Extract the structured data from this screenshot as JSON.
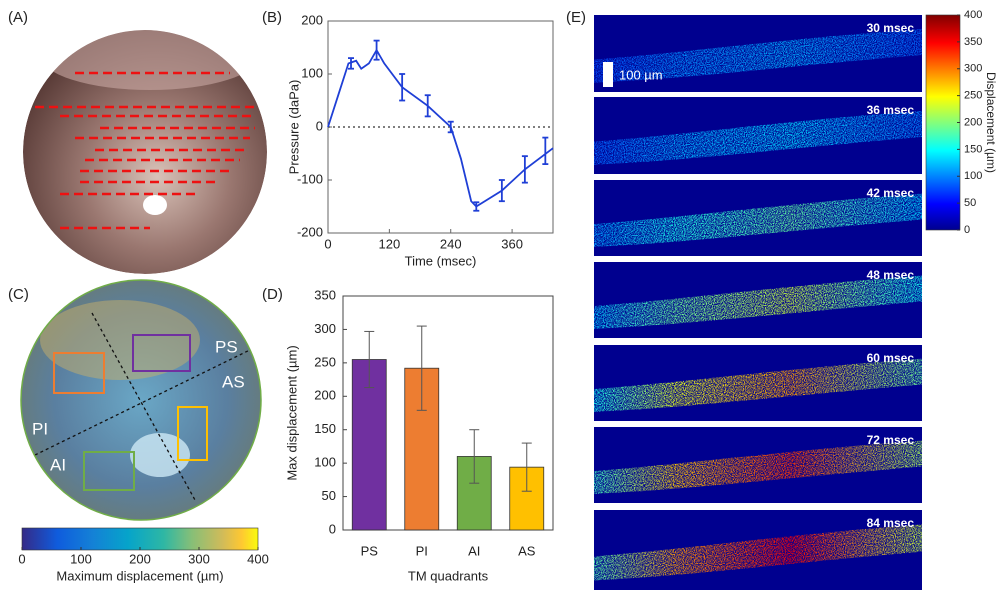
{
  "panel_labels": [
    "(A)",
    "(B)",
    "(C)",
    "(D)",
    "(E)"
  ],
  "quadrant_labels": [
    "PS",
    "AS",
    "PI",
    "AI"
  ],
  "frames": [
    "30 msec",
    "36 msec",
    "42 msec",
    "48 msec",
    "60 msec",
    "72 msec",
    "84 msec"
  ],
  "scale_bar": "100 µm",
  "chart_data": [
    {
      "type": "line",
      "xlabel": "Time (msec)",
      "ylabel": "Pressure (daPa)",
      "xlim": [
        0,
        440
      ],
      "xticks": [
        0,
        120,
        240,
        360
      ],
      "ylim": [
        -200,
        200
      ],
      "yticks": [
        -200,
        -100,
        0,
        100,
        200
      ],
      "hline": 0,
      "series": [
        {
          "color": "#1f3fd6",
          "x": [
            0,
            20,
            40,
            55,
            65,
            80,
            95,
            110,
            145,
            195,
            240,
            260,
            280,
            290,
            340,
            385,
            440
          ],
          "values": [
            0,
            60,
            120,
            125,
            110,
            120,
            145,
            120,
            75,
            40,
            0,
            -60,
            -140,
            -150,
            -120,
            -80,
            -40
          ]
        }
      ],
      "error_bars": {
        "x": [
          45,
          95,
          145,
          195,
          240,
          290,
          340,
          385,
          425
        ],
        "values": [
          120,
          145,
          75,
          40,
          0,
          -150,
          -120,
          -80,
          -45
        ],
        "errors": [
          10,
          18,
          25,
          20,
          10,
          8,
          20,
          25,
          25
        ]
      }
    },
    {
      "type": "bar",
      "xlabel": "TM quadrants",
      "ylabel": "Max displacement (µm)",
      "categories": [
        "PS",
        "PI",
        "AI",
        "AS"
      ],
      "values": [
        255,
        242,
        110,
        94
      ],
      "errors": [
        42,
        63,
        40,
        36
      ],
      "colors": [
        "#7030a0",
        "#ed7d31",
        "#70ad47",
        "#ffc000"
      ],
      "ylim": [
        0,
        350
      ],
      "yticks": [
        0,
        50,
        100,
        150,
        200,
        250,
        300,
        350
      ]
    },
    {
      "type": "colorbar",
      "orientation": "horizontal",
      "colormap": "parula",
      "label": "Maximum displacement (µm)",
      "lim": [
        0,
        400
      ],
      "ticks": [
        0,
        100,
        200,
        300,
        400
      ]
    },
    {
      "type": "colorbar",
      "orientation": "vertical",
      "colormap": "jet",
      "label": "Displacement (µm)",
      "lim": [
        0,
        400
      ],
      "ticks": [
        0,
        50,
        100,
        150,
        200,
        250,
        300,
        350,
        400
      ]
    }
  ]
}
